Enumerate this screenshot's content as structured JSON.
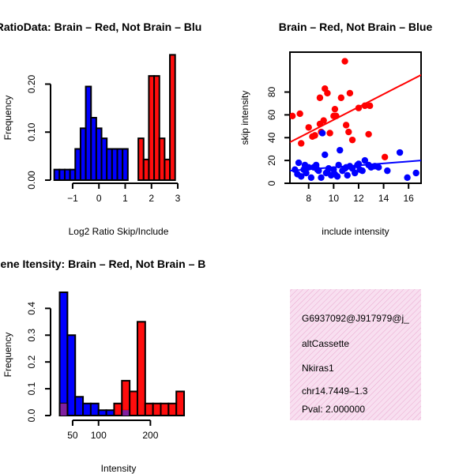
{
  "chart_data": [
    {
      "id": "hist_ratio",
      "type": "histogram",
      "title": "RatioData: Brain – Red, Not Brain – Blu",
      "xlabel": "Log2 Ratio Skip/Include",
      "ylabel": "Frequency",
      "xlim": [
        -1.75,
        3.3
      ],
      "ylim": [
        0,
        0.26
      ],
      "xticks": [
        -1,
        0,
        1,
        2,
        3
      ],
      "yticks": [
        0.0,
        0.1,
        0.2
      ],
      "ytick_labels": [
        "0.00",
        "0.10",
        "0.20"
      ],
      "series": [
        {
          "name": "Not Brain",
          "color": "#0000ff",
          "bins": [
            {
              "x0": -1.7,
              "x1": -1.5,
              "h": 0.022
            },
            {
              "x0": -1.5,
              "x1": -1.3,
              "h": 0.022
            },
            {
              "x0": -1.3,
              "x1": -1.1,
              "h": 0.022
            },
            {
              "x0": -1.1,
              "x1": -0.9,
              "h": 0.022
            },
            {
              "x0": -0.9,
              "x1": -0.7,
              "h": 0.065
            },
            {
              "x0": -0.7,
              "x1": -0.5,
              "h": 0.108
            },
            {
              "x0": -0.5,
              "x1": -0.3,
              "h": 0.195
            },
            {
              "x0": -0.3,
              "x1": -0.1,
              "h": 0.13
            },
            {
              "x0": -0.1,
              "x1": 0.1,
              "h": 0.108
            },
            {
              "x0": 0.1,
              "x1": 0.3,
              "h": 0.087
            },
            {
              "x0": 0.3,
              "x1": 0.5,
              "h": 0.065
            },
            {
              "x0": 0.5,
              "x1": 0.7,
              "h": 0.065
            },
            {
              "x0": 0.7,
              "x1": 0.9,
              "h": 0.065
            },
            {
              "x0": 0.9,
              "x1": 1.1,
              "h": 0.065
            }
          ]
        },
        {
          "name": "Brain",
          "color": "#ff0000",
          "bins": [
            {
              "x0": 1.5,
              "x1": 1.7,
              "h": 0.087
            },
            {
              "x0": 1.7,
              "x1": 1.9,
              "h": 0.043
            },
            {
              "x0": 1.9,
              "x1": 2.1,
              "h": 0.217
            },
            {
              "x0": 2.1,
              "x1": 2.3,
              "h": 0.217
            },
            {
              "x0": 2.3,
              "x1": 2.5,
              "h": 0.087
            },
            {
              "x0": 2.5,
              "x1": 2.7,
              "h": 0.043
            },
            {
              "x0": 2.7,
              "x1": 2.9,
              "h": 0.261
            }
          ]
        }
      ]
    },
    {
      "id": "scatter_intensity",
      "type": "scatter",
      "title": "Brain – Red, Not Brain – Blue",
      "xlabel": "include intensity",
      "ylabel": "skip intensity",
      "xlim": [
        6.5,
        17
      ],
      "ylim": [
        0,
        115
      ],
      "xticks": [
        8,
        10,
        12,
        14,
        16
      ],
      "yticks": [
        0,
        20,
        40,
        60,
        80
      ],
      "series": [
        {
          "name": "Brain",
          "color": "#ff0000",
          "points": [
            [
              6.7,
              59
            ],
            [
              7.3,
              61
            ],
            [
              7.4,
              35
            ],
            [
              8.0,
              49
            ],
            [
              8.3,
              41
            ],
            [
              8.5,
              42
            ],
            [
              8.9,
              75
            ],
            [
              8.9,
              52
            ],
            [
              9.0,
              45
            ],
            [
              9.2,
              55
            ],
            [
              9.3,
              83
            ],
            [
              9.5,
              79
            ],
            [
              9.7,
              44
            ],
            [
              10.1,
              65
            ],
            [
              10.2,
              59
            ],
            [
              10.6,
              75
            ],
            [
              10.9,
              107
            ],
            [
              11.0,
              51
            ],
            [
              11.2,
              45
            ],
            [
              11.5,
              38
            ],
            [
              12.0,
              66
            ],
            [
              12.5,
              68
            ],
            [
              12.8,
              43
            ],
            [
              12.9,
              68
            ],
            [
              14.1,
              23
            ],
            [
              11.3,
              79
            ],
            [
              10.0,
              59
            ]
          ],
          "fit": [
            [
              6.5,
              36
            ],
            [
              17,
              95
            ]
          ]
        },
        {
          "name": "Not Brain",
          "color": "#0000ff",
          "points": [
            [
              6.9,
              12
            ],
            [
              7.1,
              8
            ],
            [
              7.2,
              18
            ],
            [
              7.4,
              6
            ],
            [
              7.6,
              12
            ],
            [
              7.7,
              16
            ],
            [
              7.8,
              9
            ],
            [
              8.0,
              14
            ],
            [
              8.2,
              5
            ],
            [
              8.4,
              14
            ],
            [
              8.6,
              16
            ],
            [
              8.8,
              11
            ],
            [
              9.0,
              5
            ],
            [
              9.1,
              44
            ],
            [
              9.3,
              25
            ],
            [
              9.5,
              10
            ],
            [
              9.6,
              13
            ],
            [
              9.8,
              7
            ],
            [
              10.0,
              12
            ],
            [
              10.1,
              8
            ],
            [
              10.3,
              6
            ],
            [
              10.5,
              29
            ],
            [
              10.7,
              11
            ],
            [
              10.9,
              13
            ],
            [
              11.1,
              7
            ],
            [
              11.3,
              15
            ],
            [
              11.5,
              13
            ],
            [
              11.7,
              9
            ],
            [
              11.9,
              16
            ],
            [
              12.1,
              12
            ],
            [
              12.3,
              11
            ],
            [
              12.5,
              20
            ],
            [
              12.8,
              16
            ],
            [
              13.0,
              14
            ],
            [
              13.3,
              15
            ],
            [
              14.3,
              11
            ],
            [
              15.3,
              27
            ],
            [
              15.9,
              5
            ],
            [
              16.6,
              9
            ],
            [
              8.7,
              12
            ],
            [
              9.4,
              9
            ],
            [
              10.4,
              16
            ],
            [
              11.0,
              14
            ],
            [
              12.0,
              17
            ],
            [
              13.6,
              14
            ]
          ],
          "fit": [
            [
              6.5,
              11
            ],
            [
              17,
              20
            ]
          ]
        }
      ]
    },
    {
      "id": "hist_intensity",
      "type": "histogram",
      "title": "Gene Itensity: Brain – Red, Not Brain – B",
      "xlabel": "Intensity",
      "ylabel": "Frequency",
      "xlim": [
        12,
        268
      ],
      "ylim": [
        0,
        0.46
      ],
      "xticks": [
        50,
        100,
        200
      ],
      "yticks": [
        0.0,
        0.1,
        0.2,
        0.3,
        0.4
      ],
      "ytick_labels": [
        "0.0",
        "0.1",
        "0.2",
        "0.3",
        "0.4"
      ],
      "series": [
        {
          "name": "Not Brain",
          "color": "#0000ff",
          "bins": [
            {
              "x0": 25,
              "x1": 40,
              "h": 0.46
            },
            {
              "x0": 40,
              "x1": 55,
              "h": 0.3
            },
            {
              "x0": 55,
              "x1": 70,
              "h": 0.07
            },
            {
              "x0": 70,
              "x1": 85,
              "h": 0.045
            },
            {
              "x0": 85,
              "x1": 100,
              "h": 0.045
            },
            {
              "x0": 100,
              "x1": 115,
              "h": 0.02
            },
            {
              "x0": 115,
              "x1": 130,
              "h": 0.02
            },
            {
              "x0": 145,
              "x1": 160,
              "h": 0.02
            }
          ]
        },
        {
          "name": "Brain",
          "color": "#ff0000",
          "bins": [
            {
              "x0": 25,
              "x1": 40,
              "h": 0.045
            },
            {
              "x0": 130,
              "x1": 145,
              "h": 0.045
            },
            {
              "x0": 145,
              "x1": 160,
              "h": 0.13
            },
            {
              "x0": 160,
              "x1": 175,
              "h": 0.09
            },
            {
              "x0": 175,
              "x1": 190,
              "h": 0.35
            },
            {
              "x0": 190,
              "x1": 205,
              "h": 0.045
            },
            {
              "x0": 205,
              "x1": 220,
              "h": 0.045
            },
            {
              "x0": 220,
              "x1": 235,
              "h": 0.045
            },
            {
              "x0": 235,
              "x1": 250,
              "h": 0.045
            },
            {
              "x0": 250,
              "x1": 265,
              "h": 0.09
            }
          ]
        }
      ]
    }
  ],
  "info_panel": {
    "background": "#f6d5ea",
    "lines": [
      "G6937092@J917979@j_",
      "altCassette",
      "Nkiras1",
      "chr14.7449–1.3"
    ],
    "pval": "Pval: 2.000000",
    "pval_color": "#990000"
  }
}
